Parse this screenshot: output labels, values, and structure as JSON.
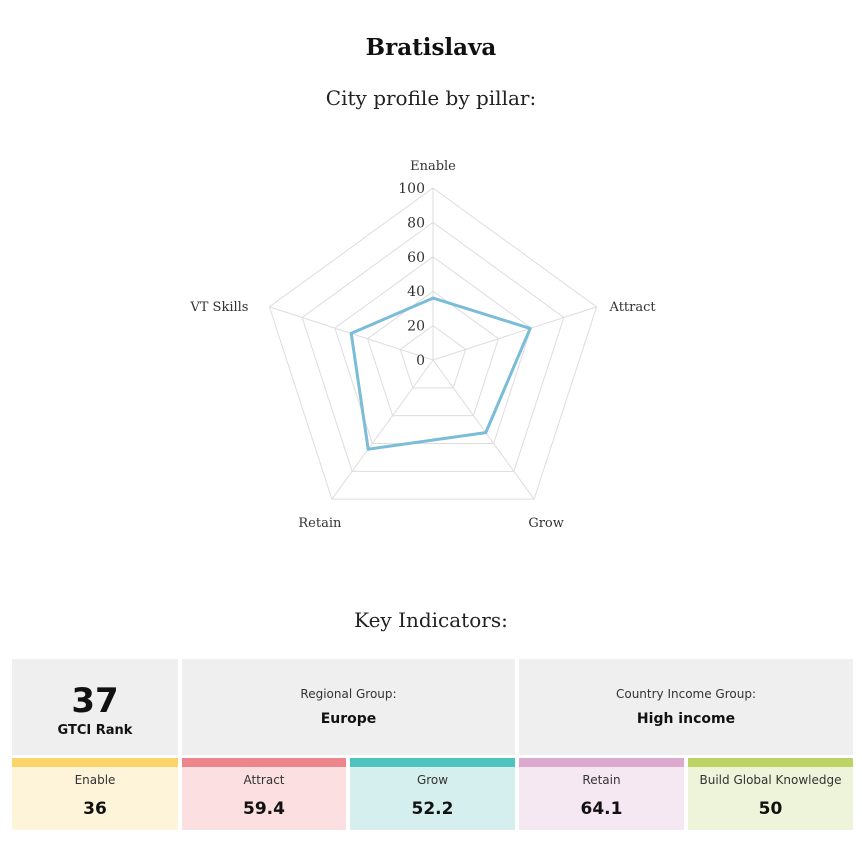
{
  "title": "Bratislava",
  "subtitle": "City profile by pillar:",
  "chart_data": {
    "type": "radar",
    "axes": [
      "Enable",
      "Attract",
      "Grow",
      "Retain",
      "VT Skills"
    ],
    "values": [
      36,
      59.4,
      52.2,
      64.1,
      50
    ],
    "ticks": [
      "0",
      "20",
      "40",
      "60",
      "80",
      "100"
    ],
    "range": [
      0,
      100
    ],
    "color": "#7bbcd8",
    "grid": true
  },
  "key_indicators": {
    "heading": "Key Indicators:",
    "rank": {
      "value": "37",
      "label": "GTCI Rank"
    },
    "regional": {
      "label": "Regional Group:",
      "value": "Europe"
    },
    "income": {
      "label": "Country Income Group:",
      "value": "High income"
    },
    "pillars": [
      {
        "label": "Enable",
        "value": "36",
        "bar": "#fbd56b",
        "bg": "#fdf4d9"
      },
      {
        "label": "Attract",
        "value": "59.4",
        "bar": "#ec858c",
        "bg": "#fbdfe1"
      },
      {
        "label": "Grow",
        "value": "52.2",
        "bar": "#4fc4bf",
        "bg": "#d5efee"
      },
      {
        "label": "Retain",
        "value": "64.1",
        "bar": "#dcaad0",
        "bg": "#f6e8f3"
      },
      {
        "label": "Build Global Knowledge",
        "value": "50",
        "bar": "#bcd465",
        "bg": "#eef4d9"
      }
    ]
  }
}
